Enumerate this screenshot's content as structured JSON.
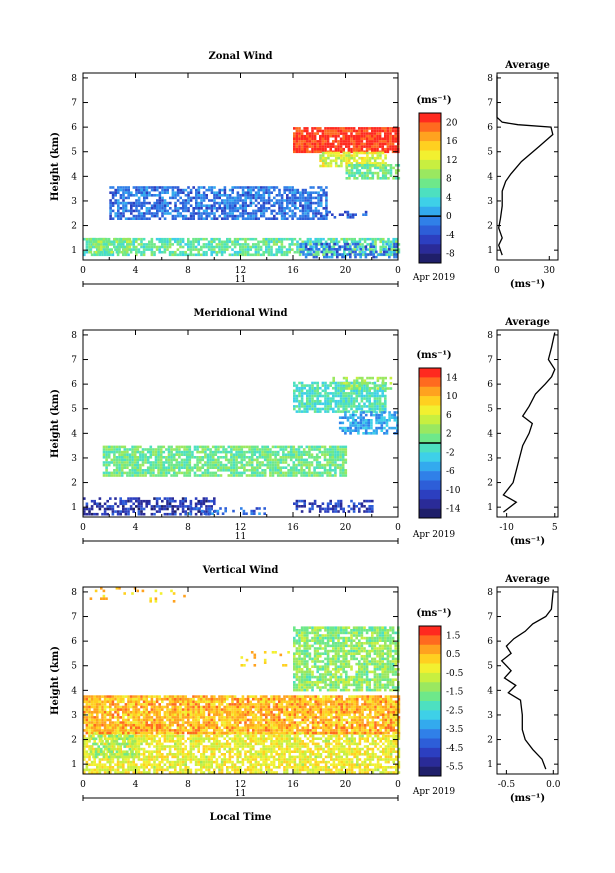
{
  "chart_data": [
    {
      "type": "heatmap",
      "title": "Zonal Wind",
      "xlabel": "",
      "ylabel": "Height (km)",
      "xlim": [
        0,
        24
      ],
      "ylim": [
        0.6,
        8.2
      ],
      "xticks": [
        "0",
        "4",
        "8",
        "12",
        "16",
        "20",
        "0"
      ],
      "xtick_values": [
        0,
        4,
        8,
        12,
        16,
        20,
        24
      ],
      "yticks": [
        "1",
        "2",
        "3",
        "4",
        "5",
        "6",
        "7",
        "8"
      ],
      "date_axis": {
        "day": "11",
        "month": "Apr 2019"
      },
      "colorbar": {
        "unit": "(ms⁻¹)",
        "ticks": [
          "20",
          "16",
          "12",
          "8",
          "4",
          "0",
          "-4",
          "-8"
        ],
        "range": [
          -10,
          22
        ],
        "zero_line": 0,
        "colors": [
          "#ff2a1f",
          "#ff6a1f",
          "#ffa21f",
          "#ffd020",
          "#f2f030",
          "#c8ef40",
          "#9ae860",
          "#6ee88a",
          "#4de0c0",
          "#3ed0e8",
          "#33aaee",
          "#3080e8",
          "#2d5ed8",
          "#2c3fc0",
          "#2a2b98",
          "#1f1f6a"
        ]
      },
      "regions": [
        {
          "x0": 0.0,
          "x1": 24.0,
          "y0": 0.8,
          "y1": 1.5,
          "value": 6,
          "density": 0.72
        },
        {
          "x0": 0.5,
          "x1": 3.5,
          "y0": 0.9,
          "y1": 1.5,
          "value": 8,
          "density": 0.8
        },
        {
          "x0": 16.5,
          "x1": 24.0,
          "y0": 0.7,
          "y1": 1.3,
          "value": -2,
          "density": 0.5
        },
        {
          "x0": 2.0,
          "x1": 18.5,
          "y0": 2.3,
          "y1": 3.6,
          "value": -2,
          "density": 0.72
        },
        {
          "x0": 18.5,
          "x1": 21.5,
          "y0": 2.3,
          "y1": 2.6,
          "value": -3,
          "density": 0.35
        },
        {
          "x0": 16.0,
          "x1": 24.0,
          "y0": 5.0,
          "y1": 6.0,
          "value": 21,
          "density": 0.92
        },
        {
          "x0": 18.0,
          "x1": 23.0,
          "y0": 4.4,
          "y1": 5.0,
          "value": 12,
          "density": 0.85
        },
        {
          "x0": 20.0,
          "x1": 24.0,
          "y0": 3.9,
          "y1": 4.5,
          "value": 7,
          "density": 0.7
        }
      ],
      "average_profile": {
        "title": "Average",
        "xlabel": "(ms⁻¹)",
        "xlim": [
          0,
          35
        ],
        "xticks": [
          "0",
          "30"
        ],
        "xtick_values": [
          0,
          30
        ],
        "points": [
          [
            3,
            0.8
          ],
          [
            1,
            1.2
          ],
          [
            3,
            1.5
          ],
          [
            1,
            1.9
          ],
          [
            2,
            2.3
          ],
          [
            3,
            2.8
          ],
          [
            3,
            3.4
          ],
          [
            5,
            3.8
          ],
          [
            8,
            4.1
          ],
          [
            14,
            4.6
          ],
          [
            24,
            5.2
          ],
          [
            32,
            5.7
          ],
          [
            31,
            6.0
          ],
          [
            12,
            6.1
          ],
          [
            3,
            6.2
          ],
          [
            0,
            6.4
          ],
          [
            0,
            8.1
          ]
        ]
      }
    },
    {
      "type": "heatmap",
      "title": "Meridional Wind",
      "xlabel": "",
      "ylabel": "Height (km)",
      "xlim": [
        0,
        24
      ],
      "ylim": [
        0.6,
        8.2
      ],
      "xticks": [
        "0",
        "4",
        "8",
        "12",
        "16",
        "20",
        "0"
      ],
      "xtick_values": [
        0,
        4,
        8,
        12,
        16,
        20,
        24
      ],
      "yticks": [
        "1",
        "2",
        "3",
        "4",
        "5",
        "6",
        "7",
        "8"
      ],
      "date_axis": {
        "day": "11",
        "month": "Apr 2019"
      },
      "colorbar": {
        "unit": "(ms⁻¹)",
        "ticks": [
          "14",
          "10",
          "6",
          "2",
          "-2",
          "-6",
          "-10",
          "-14"
        ],
        "range": [
          -16,
          16
        ],
        "zero_line": 0,
        "colors": [
          "#ff2a1f",
          "#ff6a1f",
          "#ffa21f",
          "#ffd020",
          "#f2f030",
          "#c8ef40",
          "#9ae860",
          "#6ee88a",
          "#4de0c0",
          "#3ed0e8",
          "#33aaee",
          "#3080e8",
          "#2d5ed8",
          "#2c3fc0",
          "#2a2b98",
          "#1f1f6a"
        ]
      },
      "regions": [
        {
          "x0": 0.0,
          "x1": 10.0,
          "y0": 0.7,
          "y1": 1.4,
          "value": -12,
          "density": 0.55
        },
        {
          "x0": 8.0,
          "x1": 14.0,
          "y0": 0.7,
          "y1": 1.0,
          "value": -8,
          "density": 0.4
        },
        {
          "x0": 16.0,
          "x1": 22.0,
          "y0": 0.8,
          "y1": 1.3,
          "value": -11,
          "density": 0.45
        },
        {
          "x0": 1.5,
          "x1": 20.0,
          "y0": 2.3,
          "y1": 3.5,
          "value": 1,
          "density": 0.8
        },
        {
          "x0": 16.0,
          "x1": 23.0,
          "y0": 4.9,
          "y1": 6.1,
          "value": -1,
          "density": 0.82
        },
        {
          "x0": 19.5,
          "x1": 24.0,
          "y0": 4.0,
          "y1": 4.9,
          "value": -5,
          "density": 0.65
        },
        {
          "x0": 19.0,
          "x1": 23.5,
          "y0": 5.8,
          "y1": 6.3,
          "value": 3,
          "density": 0.55
        }
      ],
      "average_profile": {
        "title": "Average",
        "xlabel": "(ms⁻¹)",
        "xlim": [
          -13,
          6
        ],
        "xticks": [
          "-10",
          "5"
        ],
        "xtick_values": [
          -10,
          5
        ],
        "points": [
          [
            -11,
            0.8
          ],
          [
            -7,
            1.2
          ],
          [
            -11,
            1.5
          ],
          [
            -8,
            2.0
          ],
          [
            -7,
            2.5
          ],
          [
            -6,
            3.0
          ],
          [
            -5,
            3.5
          ],
          [
            -3,
            4.0
          ],
          [
            -2,
            4.4
          ],
          [
            -5,
            4.7
          ],
          [
            -3,
            5.1
          ],
          [
            -1,
            5.6
          ],
          [
            2,
            6.0
          ],
          [
            4,
            6.3
          ],
          [
            5,
            6.6
          ],
          [
            3,
            7.0
          ],
          [
            4,
            7.5
          ],
          [
            5,
            8.1
          ]
        ]
      }
    },
    {
      "type": "heatmap",
      "title": "Vertical Wind",
      "xlabel": "Local Time",
      "ylabel": "Height (km)",
      "xlim": [
        0,
        24
      ],
      "ylim": [
        0.6,
        8.2
      ],
      "xticks": [
        "0",
        "4",
        "8",
        "12",
        "16",
        "20",
        "0"
      ],
      "xtick_values": [
        0,
        4,
        8,
        12,
        16,
        20,
        24
      ],
      "yticks": [
        "1",
        "2",
        "3",
        "4",
        "5",
        "6",
        "7",
        "8"
      ],
      "date_axis": {
        "day": "11",
        "month": "Apr 2019"
      },
      "colorbar": {
        "unit": "(ms⁻¹)",
        "ticks": [
          "1.5",
          "0.5",
          "-0.5",
          "-1.5",
          "-2.5",
          "-3.5",
          "-4.5",
          "-5.5"
        ],
        "range": [
          -6,
          2
        ],
        "colors": [
          "#ff2a1f",
          "#ff6a1f",
          "#ffa21f",
          "#ffd020",
          "#f2f030",
          "#c8ef40",
          "#9ae860",
          "#6ee88a",
          "#4de0c0",
          "#3ed0e8",
          "#33aaee",
          "#3080e8",
          "#2d5ed8",
          "#2c3fc0",
          "#2a2b98",
          "#1f1f6a"
        ]
      },
      "regions": [
        {
          "x0": 0.0,
          "x1": 24.0,
          "y0": 0.7,
          "y1": 2.3,
          "value": -0.3,
          "density": 0.75
        },
        {
          "x0": 0.5,
          "x1": 4.0,
          "y0": 1.3,
          "y1": 2.4,
          "value": -1.2,
          "density": 0.6
        },
        {
          "x0": 0.0,
          "x1": 24.0,
          "y0": 2.3,
          "y1": 3.8,
          "value": 0.5,
          "density": 0.88
        },
        {
          "x0": 0.5,
          "x1": 8.0,
          "y0": 7.6,
          "y1": 8.2,
          "value": 0.3,
          "density": 0.12
        },
        {
          "x0": 16.0,
          "x1": 24.0,
          "y0": 4.0,
          "y1": 6.6,
          "value": -1.4,
          "density": 0.78
        },
        {
          "x0": 12.0,
          "x1": 16.0,
          "y0": 5.0,
          "y1": 5.6,
          "value": 0.3,
          "density": 0.1
        }
      ],
      "average_profile": {
        "title": "Average",
        "xlabel": "(ms⁻¹)",
        "xlim": [
          -0.6,
          0.05
        ],
        "xticks": [
          "-0.5",
          "0.0"
        ],
        "xtick_values": [
          -0.5,
          0.0
        ],
        "points": [
          [
            -0.08,
            0.8
          ],
          [
            -0.12,
            1.2
          ],
          [
            -0.22,
            1.6
          ],
          [
            -0.3,
            2.0
          ],
          [
            -0.33,
            2.4
          ],
          [
            -0.33,
            3.0
          ],
          [
            -0.35,
            3.6
          ],
          [
            -0.48,
            3.9
          ],
          [
            -0.4,
            4.2
          ],
          [
            -0.52,
            4.5
          ],
          [
            -0.45,
            4.8
          ],
          [
            -0.55,
            5.2
          ],
          [
            -0.45,
            5.5
          ],
          [
            -0.5,
            5.8
          ],
          [
            -0.42,
            6.1
          ],
          [
            -0.3,
            6.4
          ],
          [
            -0.22,
            6.7
          ],
          [
            -0.08,
            7.0
          ],
          [
            -0.02,
            7.3
          ],
          [
            0.0,
            8.1
          ]
        ]
      }
    }
  ]
}
